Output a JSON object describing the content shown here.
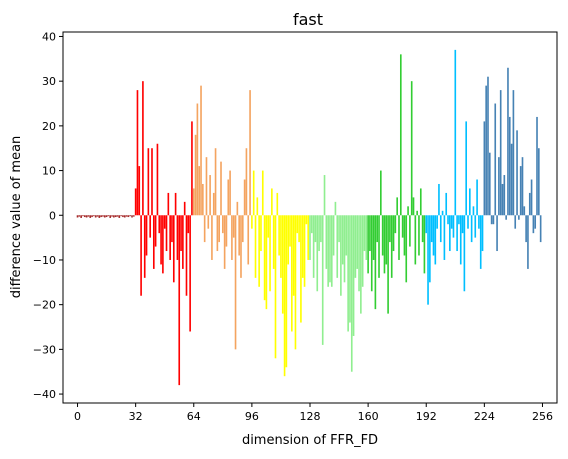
{
  "chart_data": {
    "type": "bar",
    "title": "fast",
    "xlabel": "dimension of FFR_FD",
    "ylabel": "difference value of mean",
    "xlim": [
      -8,
      264
    ],
    "ylim": [
      -42,
      41
    ],
    "x_ticks": [
      0,
      32,
      64,
      96,
      128,
      160,
      192,
      224,
      256
    ],
    "x_tick_labels": [
      "0",
      "32",
      "64",
      "96",
      "128",
      "160",
      "192",
      "224",
      "256"
    ],
    "y_ticks": [
      -40,
      -30,
      -20,
      -10,
      0,
      10,
      20,
      30,
      40
    ],
    "y_tick_labels": [
      "−40",
      "−30",
      "−20",
      "−10",
      "0",
      "10",
      "20",
      "30",
      "40"
    ],
    "grid": false,
    "legend": "none",
    "bar_width": 0.9,
    "series": [
      {
        "color": "#a52a2a",
        "x_start": 0,
        "values": [
          -0.5,
          -0.3,
          -0.6,
          -0.2,
          -0.4,
          -0.5,
          -0.3,
          -0.6,
          -0.4,
          -0.2,
          -0.5,
          -0.3,
          -0.6,
          -0.4,
          -0.3,
          -0.5,
          -0.4,
          -0.2,
          -0.6,
          -0.3,
          -0.5,
          -0.4,
          -0.3,
          -0.6,
          -0.2,
          -0.4,
          -0.5,
          -0.3,
          -0.4,
          -0.2,
          -0.5,
          -0.3
        ]
      },
      {
        "color": "#ff0000",
        "x_start": 32,
        "values": [
          6,
          28,
          11,
          -18,
          30,
          -14,
          -9,
          15,
          -5,
          15,
          -12,
          -7,
          16,
          -4,
          -11,
          -13,
          -3,
          -8,
          5,
          -10,
          -6,
          -15,
          5,
          -10,
          -38,
          -8,
          -12,
          3,
          -18,
          -4,
          -26,
          21
        ]
      },
      {
        "color": "#f4a460",
        "x_start": 64,
        "values": [
          6,
          18,
          25,
          11,
          29,
          7,
          -6,
          13,
          -3,
          9,
          -10,
          5,
          15,
          -8,
          -6,
          12,
          -4,
          -12,
          -7,
          8,
          10,
          -10,
          -5,
          -30,
          3,
          -9,
          -14,
          -6,
          8,
          15,
          -11,
          28
        ]
      },
      {
        "color": "#ffff00",
        "x_start": 96,
        "values": [
          -3,
          10,
          -14,
          4,
          -16,
          -8,
          10,
          -19,
          -21,
          -5,
          -17,
          6,
          -12,
          -32,
          5,
          -9,
          -14,
          -22,
          -36,
          -34,
          -11,
          -7,
          -26,
          -18,
          -30,
          -4,
          -6,
          -24,
          -14,
          -16,
          -2,
          -10
        ]
      },
      {
        "color": "#90ee90",
        "x_start": 128,
        "values": [
          -10,
          -4,
          -14,
          -6,
          -17,
          -8,
          -6,
          -29,
          9,
          -12,
          -16,
          -15,
          -16,
          -9,
          3,
          -14,
          -6,
          -18,
          -11,
          -15,
          -9,
          -26,
          -24,
          -35,
          -27,
          -14,
          -12,
          -17,
          -22,
          -16,
          -8,
          -10
        ]
      },
      {
        "color": "#32cd32",
        "x_start": 160,
        "values": [
          -13,
          -8,
          -17,
          -10,
          -21,
          -6,
          -14,
          10,
          -9,
          -13,
          -11,
          -22,
          -6,
          -14,
          -8,
          -4,
          4,
          -10,
          36,
          -5,
          -9,
          -15,
          2,
          -7,
          30,
          4,
          -11,
          1,
          -9,
          6,
          -6,
          -13
        ]
      },
      {
        "color": "#00bfff",
        "x_start": 192,
        "values": [
          -4,
          -20,
          -15,
          -6,
          -9,
          -11,
          -3,
          7,
          -6,
          1,
          -10,
          5,
          -2,
          -8,
          -3,
          -5,
          37,
          -8,
          -2,
          -11,
          -4,
          -17,
          21,
          -3,
          6,
          -6,
          2,
          -5,
          8,
          -3,
          -12,
          -8
        ]
      },
      {
        "color": "#4682b4",
        "x_start": 224,
        "values": [
          21,
          29,
          31,
          14,
          -2,
          -2,
          25,
          -8,
          13,
          28,
          7,
          9,
          -1,
          33,
          22,
          16,
          28,
          -3,
          19,
          -1,
          11,
          13,
          2,
          -6,
          -12,
          5,
          8,
          -4,
          -3,
          22,
          15,
          -6
        ]
      }
    ]
  }
}
